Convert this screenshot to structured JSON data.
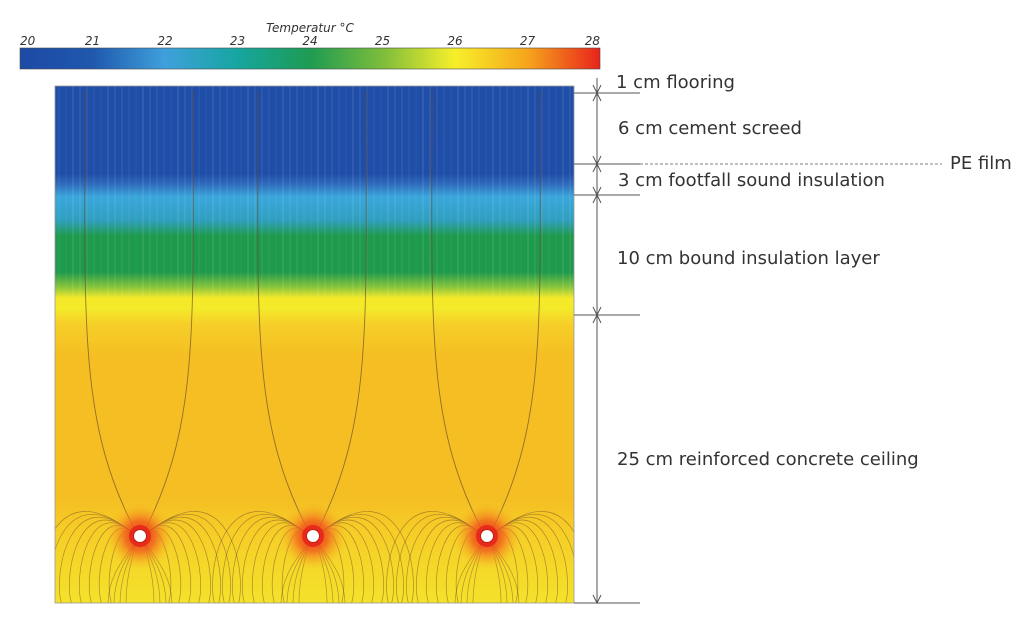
{
  "colorbar": {
    "title": "Temperatur °C",
    "ticks": [
      "20",
      "21",
      "22",
      "23",
      "24",
      "25",
      "26",
      "27",
      "28"
    ],
    "colors": [
      "#1d4aa6",
      "#1f58ad",
      "#3fa0dc",
      "#16a6a0",
      "#1e9b52",
      "#7dbd3b",
      "#f7ef2a",
      "#f6a51c",
      "#e8231c"
    ]
  },
  "layers": [
    {
      "id": "flooring",
      "label": "1 cm flooring"
    },
    {
      "id": "cement-screed",
      "label": "6 cm cement screed"
    },
    {
      "id": "pe-film",
      "label": "PE film"
    },
    {
      "id": "footfall-sound-insulation",
      "label": "3 cm footfall sound insulation"
    },
    {
      "id": "bound-insulation-layer",
      "label": "10 cm bound insulation layer"
    },
    {
      "id": "reinforced-concrete-ceiling",
      "label": "25 cm reinforced concrete ceiling"
    }
  ],
  "field_colors": {
    "top": "#1f4ea8",
    "insulation_light": "#3aa7dc",
    "insulation_green": "#1e9a4c",
    "yellow_band": "#f4ea2a",
    "concrete": "#f5bf23",
    "pipe_glow": "#e6261b",
    "line": "#6b4a2a"
  }
}
